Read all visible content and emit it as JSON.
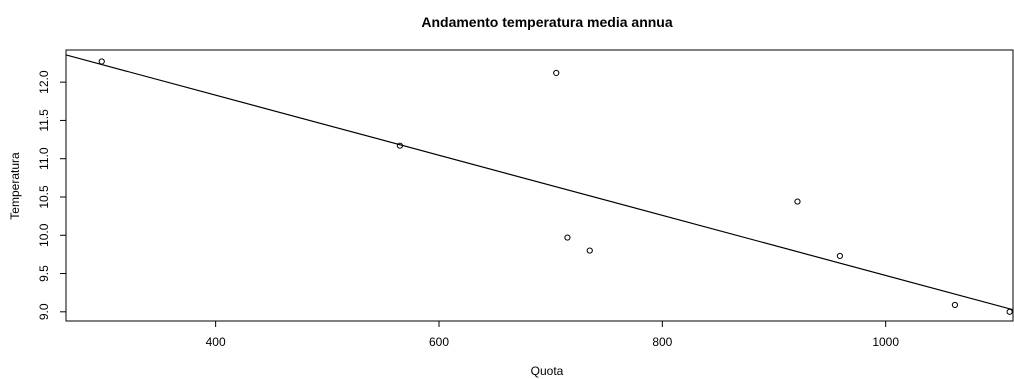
{
  "chart_data": {
    "type": "scatter",
    "title": "Andamento temperatura media annua",
    "xlabel": "Quota",
    "ylabel": "Temperatura",
    "xlim": [
      266,
      1114
    ],
    "ylim": [
      8.88,
      12.42
    ],
    "x_ticks": [
      400,
      600,
      800,
      1000
    ],
    "x_tick_labels": [
      "400",
      "600",
      "800",
      "1000"
    ],
    "y_ticks": [
      9.0,
      9.5,
      10.0,
      10.5,
      11.0,
      11.5,
      12.0
    ],
    "y_tick_labels": [
      "9.0",
      "9.5",
      "10.0",
      "10.5",
      "11.0",
      "11.5",
      "12.0"
    ],
    "grid": false,
    "points": [
      {
        "x": 298,
        "y": 12.27
      },
      {
        "x": 565,
        "y": 11.17
      },
      {
        "x": 705,
        "y": 12.12
      },
      {
        "x": 715,
        "y": 9.97
      },
      {
        "x": 735,
        "y": 9.8
      },
      {
        "x": 921,
        "y": 10.44
      },
      {
        "x": 959,
        "y": 9.73
      },
      {
        "x": 1062,
        "y": 9.09
      },
      {
        "x": 1111,
        "y": 9.0
      }
    ],
    "regression_line": {
      "intercept": 13.4,
      "slope": -0.003925
    },
    "marker": "open-circle",
    "colors": {
      "points": "#000000",
      "line": "#000000",
      "axes": "#000000"
    }
  }
}
